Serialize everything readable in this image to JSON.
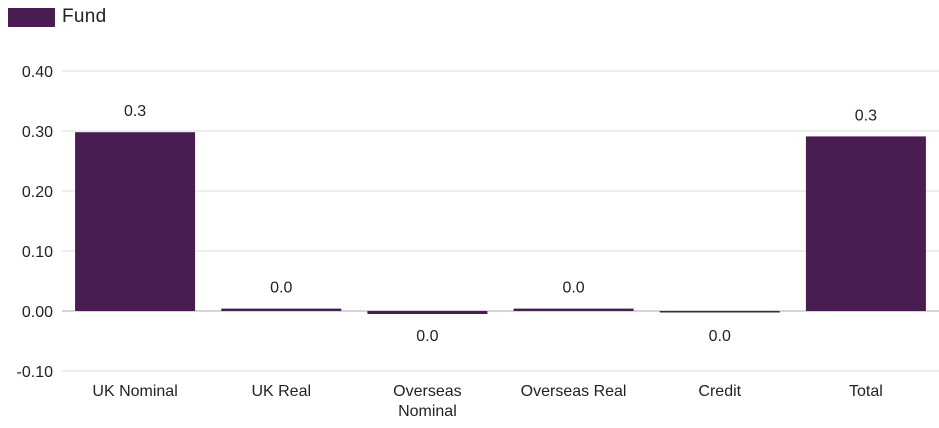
{
  "chart_data": {
    "type": "bar",
    "title": "",
    "xlabel": "",
    "ylabel": "",
    "categories": [
      "UK Nominal",
      "UK Real",
      "Overseas Nominal",
      "Overseas Real",
      "Credit",
      "Total"
    ],
    "category_lines": [
      [
        "UK Nominal"
      ],
      [
        "UK Real"
      ],
      [
        "Overseas",
        "Nominal"
      ],
      [
        "Overseas Real"
      ],
      [
        "Credit"
      ],
      [
        "Total"
      ]
    ],
    "series": [
      {
        "name": "Fund",
        "values": [
          0.298,
          0.004,
          -0.005,
          0.004,
          -0.002,
          0.291
        ],
        "data_labels": [
          "0.3",
          "0.0",
          "0.0",
          "0.0",
          "0.0",
          "0.3"
        ],
        "color": "#4a1d52"
      }
    ],
    "ylim": [
      -0.1,
      0.4
    ],
    "yticks": [
      0.4,
      0.3,
      0.2,
      0.1,
      0.0,
      -0.1
    ],
    "ytick_labels": [
      "0.40",
      "0.30",
      "0.20",
      "0.10",
      "0.00",
      "-0.10"
    ],
    "grid": true,
    "legend": "top-left"
  }
}
